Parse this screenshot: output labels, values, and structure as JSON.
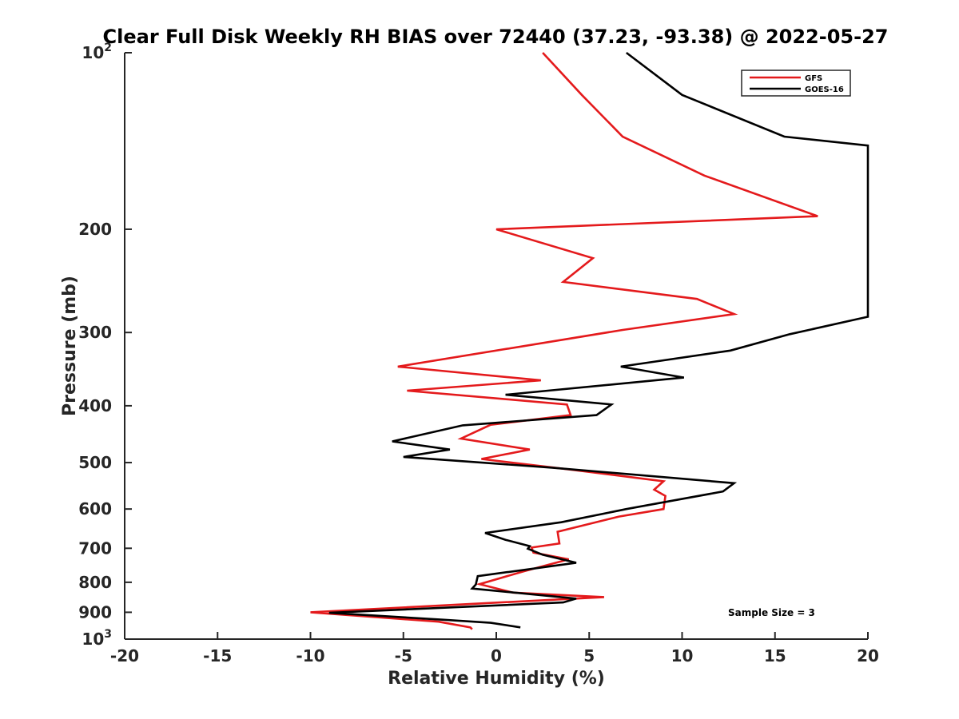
{
  "chart_data": {
    "type": "line",
    "title": "Clear Full Disk Weekly RH BIAS over 72440 (37.23, -93.38) @ 2022-05-27",
    "xlabel": "Relative Humidity (%)",
    "ylabel": "Pressure (mb)",
    "xlim": [
      -20,
      20
    ],
    "ylim": [
      100,
      1000
    ],
    "y_scale": "log",
    "y_reversed": true,
    "x_ticks": [
      "-20",
      "-15",
      "-10",
      "-5",
      "0",
      "5",
      "10",
      "15",
      "20"
    ],
    "y_ticks": [
      {
        "value": 100,
        "label": "10",
        "sup": "2"
      },
      {
        "value": 200,
        "label": "200",
        "sup": ""
      },
      {
        "value": 300,
        "label": "300",
        "sup": ""
      },
      {
        "value": 400,
        "label": "400",
        "sup": ""
      },
      {
        "value": 500,
        "label": "500",
        "sup": ""
      },
      {
        "value": 600,
        "label": "600",
        "sup": ""
      },
      {
        "value": 700,
        "label": "700",
        "sup": ""
      },
      {
        "value": 800,
        "label": "800",
        "sup": ""
      },
      {
        "value": 900,
        "label": "900",
        "sup": ""
      },
      {
        "value": 1000,
        "label": "10",
        "sup": "3"
      }
    ],
    "grid": false,
    "legend_position": "top-right",
    "series": [
      {
        "name": "GFS",
        "color": "#e41a1c",
        "points": [
          [
            2.5,
            100
          ],
          [
            4.6,
            118
          ],
          [
            6.8,
            139
          ],
          [
            11.2,
            162
          ],
          [
            17.3,
            190
          ],
          [
            0.0,
            200
          ],
          [
            5.2,
            224
          ],
          [
            3.6,
            246
          ],
          [
            10.8,
            263
          ],
          [
            12.8,
            279
          ],
          [
            6.8,
            297
          ],
          [
            -5.3,
            343
          ],
          [
            2.4,
            362
          ],
          [
            -4.8,
            377
          ],
          [
            3.8,
            398
          ],
          [
            4.0,
            415
          ],
          [
            -0.3,
            431
          ],
          [
            -1.9,
            455
          ],
          [
            1.8,
            475
          ],
          [
            -0.8,
            493
          ],
          [
            4.0,
            514
          ],
          [
            9.0,
            538
          ],
          [
            8.5,
            556
          ],
          [
            9.1,
            570
          ],
          [
            9.0,
            600
          ],
          [
            6.6,
            618
          ],
          [
            3.3,
            656
          ],
          [
            3.4,
            687
          ],
          [
            1.9,
            698
          ],
          [
            2.0,
            712
          ],
          [
            3.9,
            731
          ],
          [
            1.5,
            766
          ],
          [
            -0.9,
            806
          ],
          [
            0.9,
            833
          ],
          [
            5.8,
            848
          ],
          [
            -10.0,
            900
          ],
          [
            -3.1,
            934
          ],
          [
            -1.4,
            955
          ],
          [
            -1.3,
            962
          ]
        ]
      },
      {
        "name": "GOES-16",
        "color": "#000000",
        "points": [
          [
            7.0,
            100
          ],
          [
            10.0,
            118
          ],
          [
            15.5,
            139
          ],
          [
            20.0,
            144
          ],
          [
            20.0,
            282
          ],
          [
            15.8,
            302
          ],
          [
            12.6,
            322
          ],
          [
            6.7,
            343
          ],
          [
            10.1,
            358
          ],
          [
            0.5,
            383
          ],
          [
            6.2,
            398
          ],
          [
            5.4,
            415
          ],
          [
            -1.8,
            432
          ],
          [
            -5.6,
            460
          ],
          [
            -2.5,
            475
          ],
          [
            -5.0,
            489
          ],
          [
            3.0,
            510
          ],
          [
            12.8,
            542
          ],
          [
            12.2,
            560
          ],
          [
            7.0,
            600
          ],
          [
            3.5,
            632
          ],
          [
            -0.6,
            659
          ],
          [
            0.5,
            677
          ],
          [
            1.8,
            694
          ],
          [
            1.7,
            701
          ],
          [
            2.5,
            718
          ],
          [
            4.3,
            741
          ],
          [
            -1.0,
            781
          ],
          [
            -1.1,
            807
          ],
          [
            -1.3,
            820
          ],
          [
            4.3,
            853
          ],
          [
            3.6,
            866
          ],
          [
            -9.0,
            902
          ],
          [
            -2.8,
            927
          ],
          [
            -0.3,
            938
          ],
          [
            1.3,
            955
          ]
        ]
      }
    ],
    "annotation": "Sample Size = 3"
  }
}
